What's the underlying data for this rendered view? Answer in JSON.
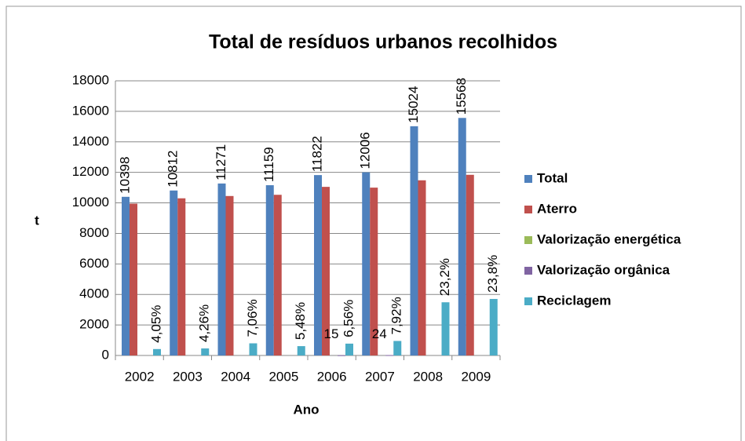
{
  "chart_data": {
    "type": "bar",
    "title": "Total de resíduos urbanos recolhidos",
    "x_label": "Ano",
    "y_label": "t",
    "categories": [
      "2002",
      "2003",
      "2004",
      "2005",
      "2006",
      "2007",
      "2008",
      "2009"
    ],
    "series": [
      {
        "name": "Total",
        "color": "#4f81bd",
        "values": [
          10398,
          10812,
          11271,
          11159,
          11822,
          12006,
          15024,
          15568
        ]
      },
      {
        "name": "Aterro",
        "color": "#c0504d",
        "values": [
          9950,
          10300,
          10450,
          10530,
          11050,
          11000,
          11480,
          11840
        ]
      },
      {
        "name": "Valorização energética",
        "color": "#9bbb59",
        "values": [
          null,
          null,
          null,
          null,
          null,
          null,
          null,
          null
        ]
      },
      {
        "name": "Valorização orgânica",
        "color": "#8064a2",
        "values": [
          null,
          null,
          null,
          null,
          15,
          24,
          null,
          null
        ]
      },
      {
        "name": "Reciclagem",
        "color": "#4bacc6",
        "values": [
          421,
          461,
          796,
          612,
          776,
          951,
          3486,
          3705
        ]
      }
    ],
    "percent_labels": [
      "4,05%",
      "4,26%",
      "7,06%",
      "5,48%",
      "6,56%",
      "7,92%",
      "23,2%",
      "23,8%"
    ],
    "ylim": [
      0,
      18000
    ],
    "yticks": [
      0,
      2000,
      4000,
      6000,
      8000,
      10000,
      12000,
      14000,
      16000,
      18000
    ],
    "grid": true,
    "legend": "right"
  }
}
